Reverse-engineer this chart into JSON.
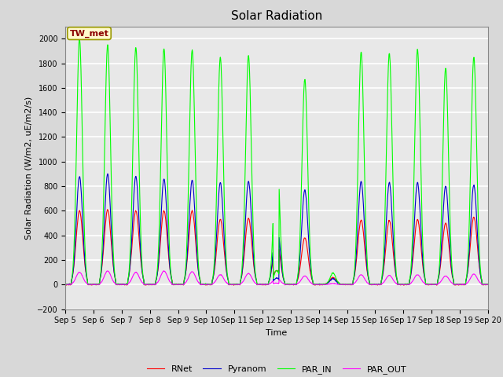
{
  "title": "Solar Radiation",
  "ylabel": "Solar Radiation (W/m2, uE/m2/s)",
  "xlabel": "Time",
  "ylim": [
    -200,
    2100
  ],
  "xlim": [
    0,
    15
  ],
  "x_tick_labels": [
    "Sep 5",
    "Sep 6",
    "Sep 7",
    "Sep 8",
    "Sep 9",
    "Sep 10",
    "Sep 11",
    "Sep 12",
    "Sep 13",
    "Sep 14",
    "Sep 15",
    "Sep 16",
    "Sep 17",
    "Sep 18",
    "Sep 19",
    "Sep 20"
  ],
  "annotation_text": "TW_met",
  "annotation_box_color": "#FFFACD",
  "annotation_box_edge": "#999900",
  "annotation_text_color": "#8B0000",
  "colors": {
    "RNet": "#FF0000",
    "Pyranom": "#0000CC",
    "PAR_IN": "#00FF00",
    "PAR_OUT": "#FF00FF"
  },
  "legend_labels": [
    "RNet",
    "Pyranom",
    "PAR_IN",
    "PAR_OUT"
  ],
  "bg_color": "#E8E8E8",
  "grid_color": "#FFFFFF",
  "title_fontsize": 11,
  "label_fontsize": 8,
  "tick_fontsize": 7
}
